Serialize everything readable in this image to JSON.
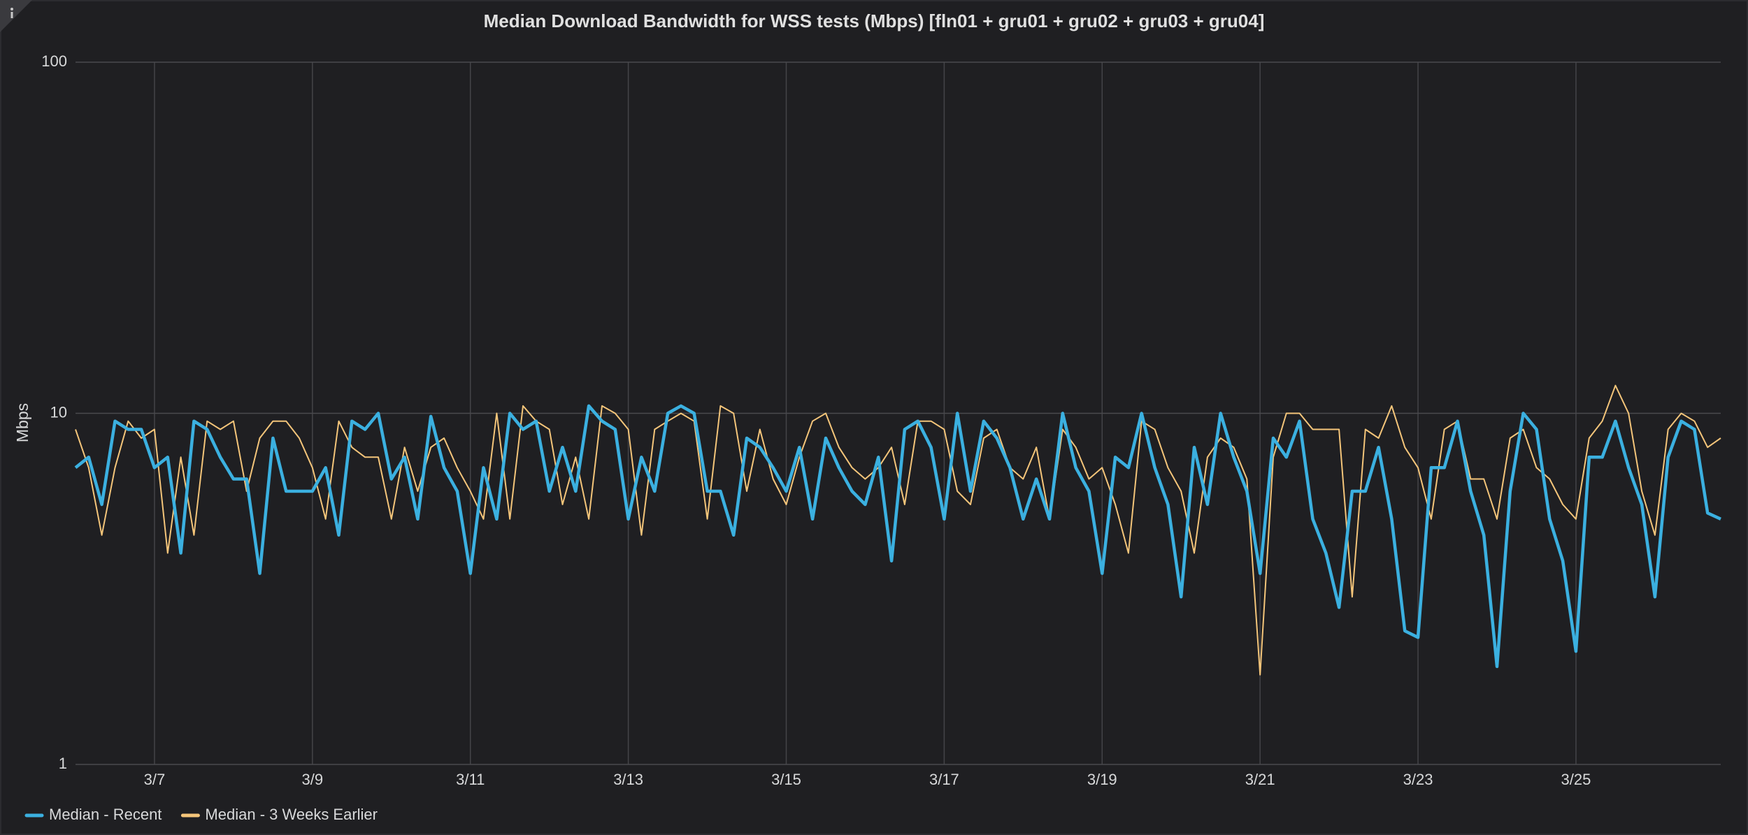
{
  "chart_data": {
    "type": "line",
    "title": "Median Download Bandwidth for WSS tests (Mbps) [fln01 + gru01 + gru02 + gru03 + gru04]",
    "y_label": "Mbps",
    "log_scale": true,
    "grid": true,
    "legend": "bottom-left",
    "ylim": [
      1,
      100
    ],
    "yticks": [
      1,
      10,
      100
    ],
    "categories": [
      null,
      null,
      null,
      null,
      null,
      null,
      "3/7",
      null,
      null,
      null,
      null,
      null,
      null,
      null,
      null,
      null,
      null,
      null,
      "3/9",
      null,
      null,
      null,
      null,
      null,
      null,
      null,
      null,
      null,
      null,
      null,
      "3/11",
      null,
      null,
      null,
      null,
      null,
      null,
      null,
      null,
      null,
      null,
      null,
      "3/13",
      null,
      null,
      null,
      null,
      null,
      null,
      null,
      null,
      null,
      null,
      null,
      "3/15",
      null,
      null,
      null,
      null,
      null,
      null,
      null,
      null,
      null,
      null,
      null,
      "3/17",
      null,
      null,
      null,
      null,
      null,
      null,
      null,
      null,
      null,
      null,
      null,
      "3/19",
      null,
      null,
      null,
      null,
      null,
      null,
      null,
      null,
      null,
      null,
      null,
      "3/21",
      null,
      null,
      null,
      null,
      null,
      null,
      null,
      null,
      null,
      null,
      null,
      "3/23",
      null,
      null,
      null,
      null,
      null,
      null,
      null,
      null,
      null,
      null,
      null,
      "3/25",
      null,
      null,
      null,
      null,
      null,
      null,
      null,
      null,
      null,
      null,
      null
    ],
    "series": [
      {
        "name": "Median - Recent",
        "color": "#3bb0e0",
        "values": [
          7,
          7.5,
          5.5,
          9.5,
          9,
          9,
          7,
          7.5,
          4,
          9.5,
          9,
          7.5,
          6.5,
          6.5,
          3.5,
          8.5,
          6,
          6,
          6,
          7,
          4.5,
          9.5,
          9,
          10,
          6.5,
          7.5,
          5,
          9.8,
          7,
          6,
          3.5,
          7,
          5,
          10,
          9,
          9.5,
          6,
          8,
          6,
          10.5,
          9.5,
          9,
          5,
          7.5,
          6,
          10,
          10.5,
          10,
          6,
          6,
          4.5,
          8.5,
          8,
          7,
          6,
          8,
          5,
          8.5,
          7,
          6,
          5.5,
          7.5,
          3.8,
          9,
          9.5,
          8,
          5,
          10,
          6,
          9.5,
          8.5,
          7,
          5,
          6.5,
          5,
          10,
          7,
          6,
          3.5,
          7.5,
          7,
          10,
          7,
          5.5,
          3,
          8,
          5.5,
          10,
          7.5,
          6,
          3.5,
          8.5,
          7.5,
          9.5,
          5,
          4,
          2.8,
          6,
          6,
          8,
          5,
          2.4,
          2.3,
          7,
          7,
          9.5,
          6,
          4.5,
          1.9,
          6,
          10,
          9,
          5,
          3.8,
          2.1,
          7.5,
          7.5,
          9.5,
          7,
          5.5,
          3,
          7.5,
          9.5,
          9,
          5.2,
          5
        ]
      },
      {
        "name": "Median - 3 Weeks Earlier",
        "color": "#f4c57a",
        "values": [
          9,
          7,
          4.5,
          7,
          9.5,
          8.5,
          9,
          4,
          7.5,
          4.5,
          9.5,
          9,
          9.5,
          6,
          8.5,
          9.5,
          9.5,
          8.5,
          7,
          5,
          9.5,
          8,
          7.5,
          7.5,
          5,
          8,
          6,
          8,
          8.5,
          7,
          6,
          5,
          10,
          5,
          10.5,
          9.5,
          9,
          5.5,
          7.5,
          5,
          10.5,
          10,
          9,
          4.5,
          9,
          9.5,
          10,
          9.5,
          5,
          10.5,
          10,
          6,
          9,
          6.5,
          5.5,
          7.5,
          9.5,
          10,
          8,
          7,
          6.5,
          7,
          8,
          5.5,
          9.5,
          9.5,
          9,
          6,
          5.5,
          8.5,
          9,
          7,
          6.5,
          8,
          5,
          9,
          8,
          6.5,
          7,
          5.5,
          4,
          9.5,
          9,
          7,
          6,
          4,
          7.5,
          8.5,
          8,
          6.5,
          1.8,
          7.5,
          10,
          10,
          9,
          9,
          9,
          3,
          9,
          8.5,
          10.5,
          8,
          7,
          5,
          9,
          9.5,
          6.5,
          6.5,
          5,
          8.5,
          9,
          7,
          6.5,
          5.5,
          5,
          8.5,
          9.5,
          12,
          10,
          6,
          4.5,
          9,
          10,
          9.5,
          8,
          8.5
        ]
      }
    ]
  }
}
